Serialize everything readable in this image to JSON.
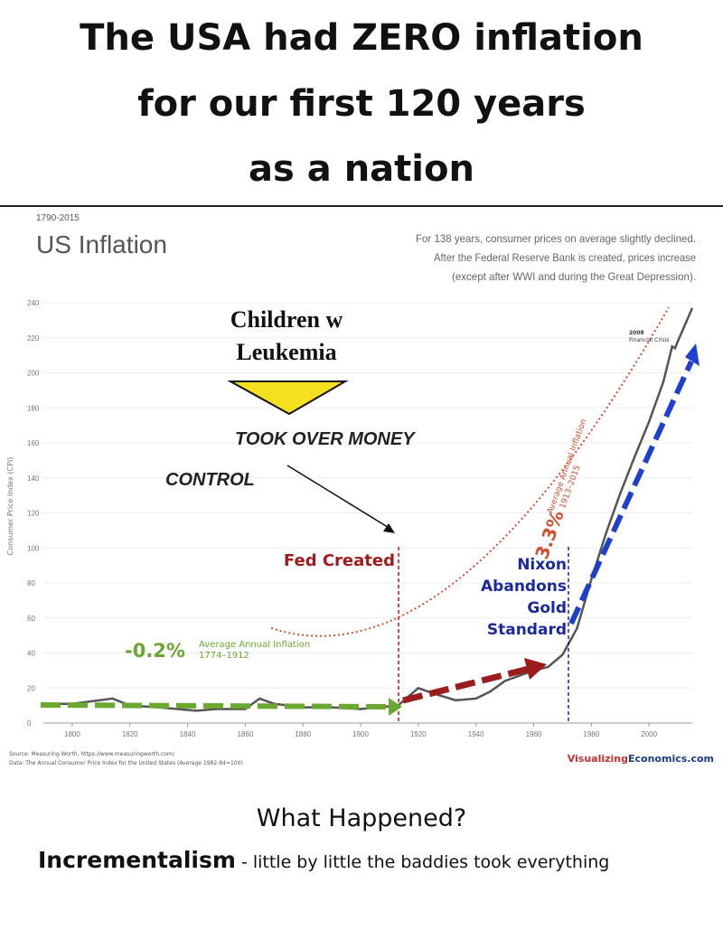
{
  "header": {
    "lines": [
      "The USA had ZERO inflation",
      "for our first 120 years",
      "as a nation"
    ]
  },
  "chart_data": {
    "type": "line",
    "date_range": "1790-2015",
    "title": "US Inflation",
    "subtitle": [
      "For 138 years, consumer prices on average slightly declined.",
      "After the Federal Reserve Bank is created, prices increase",
      "(except after WWI and during the Great Depression)."
    ],
    "y_label": "Consumer Price Index (CPI)",
    "x": [
      1790,
      1800,
      1814,
      1820,
      1830,
      1843,
      1850,
      1860,
      1865,
      1870,
      1880,
      1890,
      1900,
      1913,
      1920,
      1925,
      1933,
      1940,
      1945,
      1950,
      1955,
      1960,
      1965,
      1970,
      1975,
      1980,
      1985,
      1990,
      1995,
      2000,
      2005,
      2008,
      2009,
      2010,
      2015
    ],
    "series": [
      {
        "color": "#555555",
        "values": [
          11,
          11,
          14,
          10,
          9,
          7,
          8,
          8,
          14,
          11,
          9,
          9,
          8,
          10,
          20,
          17,
          13,
          14,
          18,
          24,
          27,
          30,
          32,
          39,
          54,
          82,
          108,
          131,
          152,
          172,
          195,
          215,
          214,
          218,
          237
        ]
      }
    ],
    "xlim": [
      1790,
      2015
    ],
    "xticks": [
      1800,
      1820,
      1840,
      1860,
      1880,
      1900,
      1920,
      1940,
      1960,
      1980,
      2000
    ],
    "ylim": [
      0,
      240
    ],
    "yticks": [
      0,
      20,
      40,
      60,
      80,
      100,
      120,
      140,
      160,
      180,
      200,
      220,
      240
    ],
    "annotations": {
      "children": [
        "Children w",
        "Leukemia"
      ],
      "took": "TOOK OVER MONEY",
      "control": "CONTROL",
      "fed": "Fed Created",
      "nixon": [
        "Nixon",
        "Abandons",
        "Gold",
        "Standard"
      ],
      "early_rate": "-0.2%",
      "early_label": [
        "Average Annual Inflation",
        "1774–1912"
      ],
      "late_rate": "3.3%",
      "late_label": [
        "Average Annual Inflation",
        "1913–2015"
      ],
      "crisis": [
        "2008",
        "Financial Crisis"
      ]
    },
    "source": [
      "Source: Measuring Worth, https://www.measuringworth.com/",
      "Data: The Annual Consumer Price Index for the United States (Average 1982-84=100)"
    ],
    "brand": [
      "Visualizing",
      "Economics.com"
    ]
  },
  "footer": {
    "question": "What Happened?",
    "term": "Incrementalism",
    "explanation": " - little by little the baddies took everything"
  }
}
